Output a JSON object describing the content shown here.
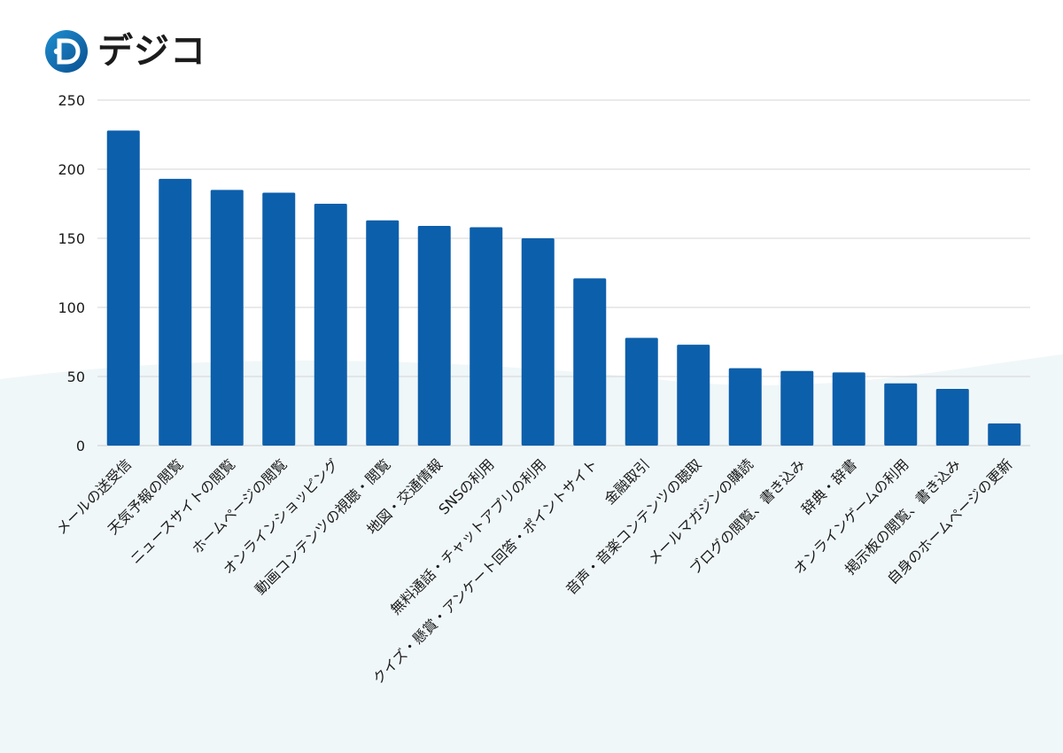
{
  "logo": {
    "text": "デジコ",
    "icon": "digico-logo-icon",
    "colors": {
      "icon_gradient_start": "#1f8fd1",
      "icon_gradient_end": "#0a4f8f",
      "text": "#1b1b1b"
    }
  },
  "colors": {
    "bar": "#0c5fab",
    "grid": "#d4d4d4",
    "background_wave": "#f0f7f9"
  },
  "chart_data": {
    "type": "bar",
    "title": "",
    "xlabel": "",
    "ylabel": "",
    "ylim": [
      0,
      250
    ],
    "yticks": [
      0,
      50,
      100,
      150,
      200,
      250
    ],
    "grid": true,
    "categories": [
      "メールの送受信",
      "天気予報の閲覧",
      "ニュースサイトの閲覧",
      "ホームページの閲覧",
      "オンラインショッピング",
      "動画コンテンツの視聴・閲覧",
      "地図・交通情報",
      "SNSの利用",
      "無料通話・チャットアプリの利用",
      "クイズ・懸賞・アンケート回答・ポイントサイト",
      "金融取引",
      "音声・音楽コンテンツの聴取",
      "メールマガジンの購読",
      "ブログの閲覧、書き込み",
      "辞典・辞書",
      "オンラインゲームの利用",
      "掲示板の閲覧、書き込み",
      "自身のホームページの更新"
    ],
    "values": [
      228,
      193,
      185,
      183,
      175,
      163,
      159,
      158,
      150,
      121,
      78,
      73,
      56,
      54,
      53,
      45,
      41,
      16
    ]
  }
}
